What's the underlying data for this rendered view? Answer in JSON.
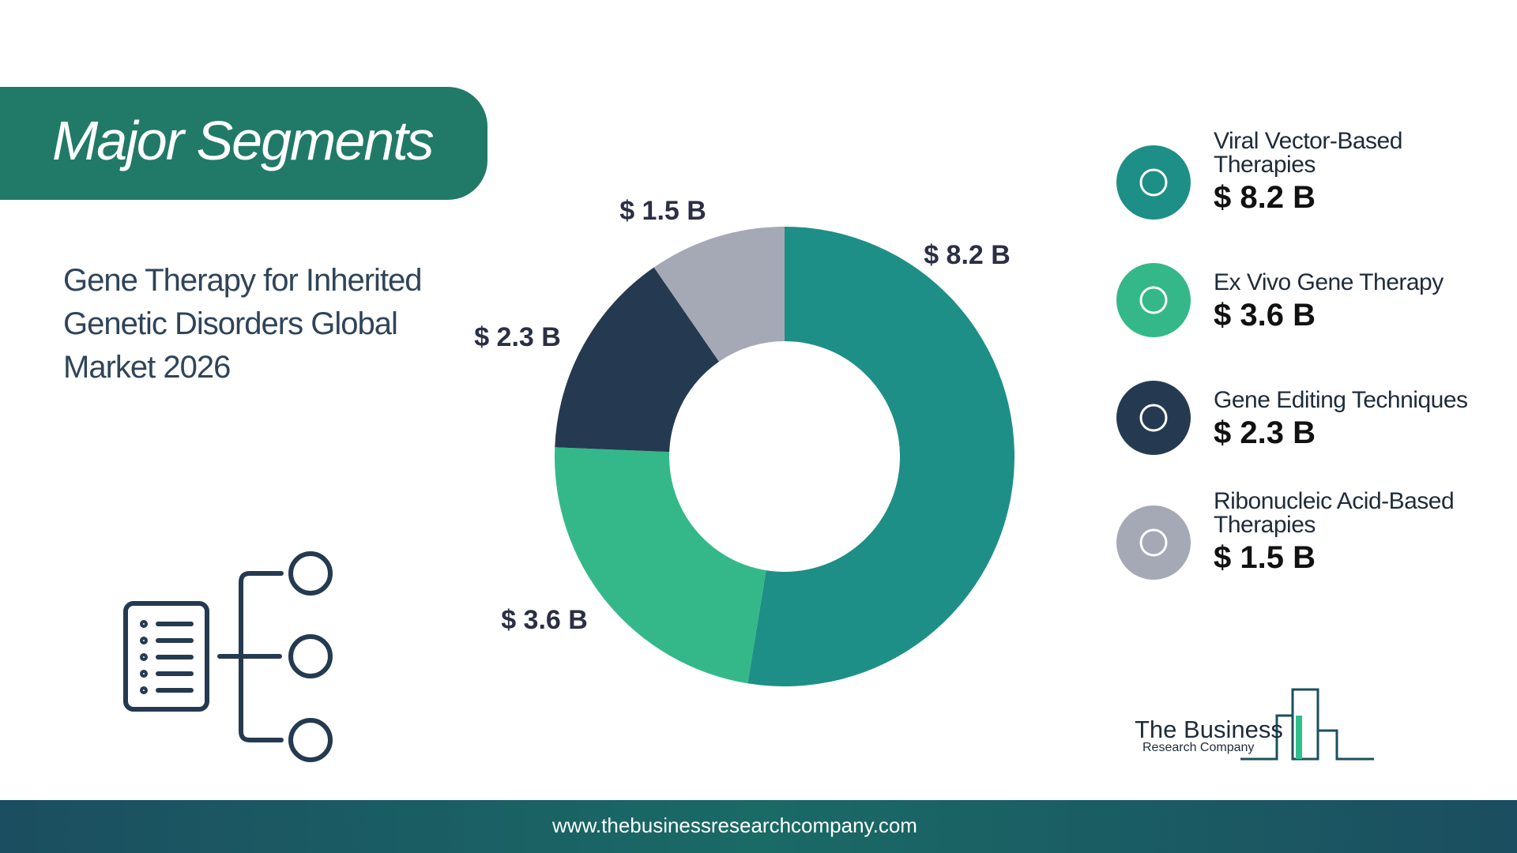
{
  "chart_data": {
    "type": "donut",
    "title": "Major Segments",
    "subtitle": "Gene Therapy for Inherited Genetic Disorders Global Market 2026",
    "categories": [
      "Viral Vector-Based Therapies",
      "Ex Vivo Gene Therapy",
      "Gene Editing Techniques",
      "Ribonucleic Acid-Based Therapies"
    ],
    "values": [
      8.2,
      3.6,
      2.3,
      1.5
    ],
    "value_labels": [
      "$ 8.2 B",
      "$ 3.6 B",
      "$ 2.3 B",
      "$ 1.5 B"
    ],
    "colors": [
      "#1e8f86",
      "#34b88a",
      "#253a50",
      "#a4a9b5"
    ]
  },
  "logo": {
    "line1": "The Business",
    "line2": "Research Company"
  },
  "footer": {
    "url": "www.thebusinessresearchcompany.com"
  }
}
